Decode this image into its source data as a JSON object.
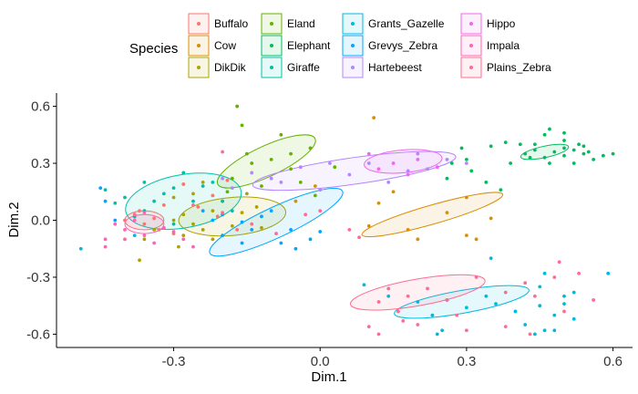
{
  "chart_data": {
    "type": "scatter",
    "xlabel": "Dim.1",
    "ylabel": "Dim.2",
    "xlim": [
      -0.54,
      0.64
    ],
    "ylim": [
      -0.67,
      0.67
    ],
    "xticks": [
      -0.3,
      0.0,
      0.3,
      0.6
    ],
    "xtick_labels": [
      "-0.3",
      "0.0",
      "0.3",
      "0.6"
    ],
    "yticks": [
      -0.6,
      -0.3,
      0.0,
      0.3,
      0.6
    ],
    "ytick_labels": [
      "-0.6",
      "-0.3",
      "0.0",
      "0.3",
      "0.6"
    ],
    "grid": false,
    "legend": {
      "title": "Species",
      "position": "top",
      "columns": 4
    },
    "series": [
      {
        "name": "Buffalo",
        "color": "#F8766D",
        "ellipse": {
          "cx": -0.36,
          "cy": 0.0,
          "rx": 0.04,
          "ry": 0.05,
          "angle": 0
        },
        "points": [
          [
            -0.38,
            0.02
          ],
          [
            -0.36,
            -0.02
          ],
          [
            -0.34,
            0.01
          ],
          [
            -0.4,
            0.0
          ],
          [
            -0.37,
            0.05
          ],
          [
            -0.33,
            -0.05
          ],
          [
            -0.3,
            -0.07
          ],
          [
            -0.25,
            0.07
          ],
          [
            -0.28,
            0.19
          ],
          [
            -0.21,
            0.02
          ],
          [
            -0.19,
            0.21
          ],
          [
            -0.17,
            -0.05
          ],
          [
            -0.22,
            0.13
          ],
          [
            -0.32,
            0.08
          ]
        ]
      },
      {
        "name": "Cow",
        "color": "#DB8E00",
        "ellipse": {
          "cx": 0.23,
          "cy": 0.03,
          "rx": 0.15,
          "ry": 0.05,
          "angle": -16
        },
        "points": [
          [
            0.11,
            0.54
          ],
          [
            0.2,
            -0.1
          ],
          [
            0.12,
            0.09
          ],
          [
            0.26,
            0.04
          ],
          [
            0.3,
            0.12
          ],
          [
            0.3,
            -0.08
          ],
          [
            0.32,
            -0.1
          ],
          [
            0.15,
            0.15
          ],
          [
            0.18,
            -0.05
          ],
          [
            0.35,
            0.01
          ],
          [
            0.1,
            -0.03
          ],
          [
            -0.05,
            0.1
          ],
          [
            -0.01,
            0.18
          ]
        ]
      },
      {
        "name": "DikDik",
        "color": "#AEA200",
        "ellipse": {
          "cx": -0.18,
          "cy": 0.02,
          "rx": 0.11,
          "ry": 0.1,
          "angle": -5
        },
        "points": [
          [
            -0.3,
            0.0
          ],
          [
            -0.28,
            0.03
          ],
          [
            -0.26,
            -0.02
          ],
          [
            -0.22,
            0.05
          ],
          [
            -0.2,
            0.1
          ],
          [
            -0.15,
            0.14
          ],
          [
            -0.13,
            0.07
          ],
          [
            -0.24,
            -0.05
          ],
          [
            -0.18,
            -0.03
          ],
          [
            -0.12,
            -0.04
          ],
          [
            -0.3,
            0.12
          ],
          [
            -0.22,
            -0.1
          ],
          [
            -0.28,
            -0.08
          ],
          [
            -0.16,
            0.04
          ],
          [
            -0.34,
            -0.05
          ],
          [
            -0.37,
            -0.21
          ],
          [
            -0.29,
            -0.14
          ],
          [
            -0.36,
            -0.1
          ],
          [
            -0.24,
            0.2
          ],
          [
            -0.26,
            0.14
          ]
        ]
      },
      {
        "name": "Eland",
        "color": "#64B200",
        "ellipse": {
          "cx": -0.11,
          "cy": 0.31,
          "rx": 0.11,
          "ry": 0.08,
          "angle": -25
        },
        "points": [
          [
            -0.17,
            0.6
          ],
          [
            -0.16,
            0.5
          ],
          [
            -0.1,
            0.32
          ],
          [
            -0.08,
            0.45
          ],
          [
            -0.14,
            0.3
          ],
          [
            -0.06,
            0.27
          ],
          [
            -0.12,
            0.18
          ],
          [
            -0.02,
            0.38
          ],
          [
            -0.18,
            0.22
          ],
          [
            -0.04,
            0.2
          ],
          [
            -0.15,
            0.35
          ],
          [
            -0.19,
            0.15
          ],
          [
            0.03,
            0.28
          ],
          [
            -0.01,
            0.13
          ],
          [
            -0.06,
            0.35
          ]
        ]
      },
      {
        "name": "Elephant",
        "color": "#00BD5C",
        "ellipse": {
          "cx": 0.46,
          "cy": 0.36,
          "rx": 0.05,
          "ry": 0.03,
          "angle": -12
        },
        "points": [
          [
            0.42,
            0.35
          ],
          [
            0.44,
            0.37
          ],
          [
            0.46,
            0.33
          ],
          [
            0.48,
            0.36
          ],
          [
            0.5,
            0.38
          ],
          [
            0.52,
            0.37
          ],
          [
            0.54,
            0.35
          ],
          [
            0.5,
            0.34
          ],
          [
            0.46,
            0.45
          ],
          [
            0.47,
            0.48
          ],
          [
            0.5,
            0.46
          ],
          [
            0.53,
            0.4
          ],
          [
            0.55,
            0.36
          ],
          [
            0.58,
            0.34
          ],
          [
            0.6,
            0.35
          ],
          [
            0.44,
            0.4
          ],
          [
            0.41,
            0.4
          ],
          [
            0.38,
            0.41
          ],
          [
            0.35,
            0.39
          ],
          [
            0.52,
            0.3
          ],
          [
            0.56,
            0.32
          ],
          [
            0.47,
            0.3
          ],
          [
            0.43,
            0.33
          ],
          [
            0.27,
            0.3
          ],
          [
            0.31,
            0.26
          ],
          [
            0.3,
            0.32
          ],
          [
            0.26,
            0.22
          ],
          [
            0.37,
            0.16
          ],
          [
            0.34,
            0.2
          ],
          [
            0.29,
            0.38
          ],
          [
            0.39,
            0.3
          ],
          [
            0.5,
            0.42
          ],
          [
            0.54,
            0.39
          ]
        ]
      },
      {
        "name": "Giraffe",
        "color": "#00C1A7",
        "ellipse": {
          "cx": -0.28,
          "cy": 0.1,
          "rx": 0.12,
          "ry": 0.14,
          "angle": -10
        },
        "points": [
          [
            -0.4,
            0.12
          ],
          [
            -0.36,
            0.2
          ],
          [
            -0.32,
            0.14
          ],
          [
            -0.28,
            0.25
          ],
          [
            -0.24,
            0.18
          ],
          [
            -0.2,
            0.1
          ],
          [
            -0.18,
            0.05
          ],
          [
            -0.36,
            0.05
          ],
          [
            -0.3,
            -0.02
          ],
          [
            -0.26,
            0.1
          ],
          [
            -0.22,
            0.2
          ],
          [
            -0.38,
            0.02
          ],
          [
            -0.34,
            0.1
          ],
          [
            -0.42,
            0.09
          ],
          [
            -0.3,
            0.17
          ],
          [
            -0.44,
            0.16
          ]
        ]
      },
      {
        "name": "Grants_Gazelle",
        "color": "#00BADE",
        "ellipse": {
          "cx": 0.29,
          "cy": -0.43,
          "rx": 0.14,
          "ry": 0.06,
          "angle": -10
        },
        "points": [
          [
            0.14,
            -0.4
          ],
          [
            0.2,
            -0.43
          ],
          [
            0.26,
            -0.42
          ],
          [
            0.3,
            -0.46
          ],
          [
            0.36,
            -0.44
          ],
          [
            0.4,
            -0.48
          ],
          [
            0.34,
            -0.4
          ],
          [
            0.45,
            -0.45
          ],
          [
            0.48,
            -0.5
          ],
          [
            0.5,
            -0.44
          ],
          [
            0.52,
            -0.52
          ],
          [
            0.42,
            -0.55
          ],
          [
            0.44,
            -0.6
          ],
          [
            0.46,
            -0.58
          ],
          [
            0.48,
            -0.58
          ],
          [
            0.23,
            -0.5
          ],
          [
            0.25,
            -0.58
          ],
          [
            0.24,
            -0.6
          ],
          [
            0.09,
            -0.34
          ],
          [
            0.45,
            -0.35
          ],
          [
            0.46,
            -0.28
          ],
          [
            0.52,
            -0.38
          ],
          [
            0.59,
            -0.28
          ],
          [
            0.5,
            -0.4
          ],
          [
            0.35,
            -0.2
          ],
          [
            -0.49,
            -0.15
          ],
          [
            -0.38,
            -0.08
          ]
        ]
      },
      {
        "name": "Grevys_Zebra",
        "color": "#00A6FF",
        "ellipse": {
          "cx": -0.09,
          "cy": -0.01,
          "rx": 0.15,
          "ry": 0.08,
          "angle": -25
        },
        "points": [
          [
            -0.2,
            0.03
          ],
          [
            -0.16,
            -0.01
          ],
          [
            -0.12,
            0.02
          ],
          [
            -0.06,
            -0.05
          ],
          [
            -0.02,
            -0.1
          ],
          [
            0.0,
            -0.06
          ],
          [
            -0.08,
            -0.12
          ],
          [
            -0.14,
            -0.05
          ],
          [
            -0.2,
            -0.08
          ],
          [
            -0.16,
            -0.12
          ],
          [
            -0.1,
            0.05
          ],
          [
            -0.22,
            0.0
          ],
          [
            -0.24,
            0.05
          ],
          [
            -0.05,
            -0.15
          ],
          [
            -0.45,
            0.17
          ],
          [
            -0.44,
            0.1
          ],
          [
            -0.42,
            0.0
          ]
        ]
      },
      {
        "name": "Hartebeest",
        "color": "#B385FF",
        "ellipse": {
          "cx": 0.07,
          "cy": 0.26,
          "rx": 0.21,
          "ry": 0.07,
          "angle": -8
        },
        "points": [
          [
            -0.2,
            0.22
          ],
          [
            -0.14,
            0.25
          ],
          [
            -0.08,
            0.2
          ],
          [
            -0.04,
            0.28
          ],
          [
            0.02,
            0.3
          ],
          [
            0.06,
            0.24
          ],
          [
            0.1,
            0.3
          ],
          [
            0.14,
            0.2
          ],
          [
            0.18,
            0.26
          ],
          [
            0.22,
            0.27
          ],
          [
            0.26,
            0.32
          ],
          [
            0.3,
            0.3
          ],
          [
            0.2,
            0.35
          ],
          [
            -0.1,
            0.22
          ],
          [
            -0.18,
            0.17
          ],
          [
            0.0,
            0.16
          ]
        ]
      },
      {
        "name": "Hippo",
        "color": "#EF67EB",
        "ellipse": {
          "cx": 0.17,
          "cy": 0.31,
          "rx": 0.08,
          "ry": 0.06,
          "angle": -5
        },
        "points": [
          [
            0.1,
            0.35
          ],
          [
            0.15,
            0.3
          ],
          [
            0.2,
            0.32
          ],
          [
            0.24,
            0.28
          ],
          [
            0.18,
            0.24
          ],
          [
            0.12,
            0.27
          ]
        ]
      },
      {
        "name": "Impala",
        "color": "#FF63B6",
        "ellipse": {
          "cx": -0.36,
          "cy": -0.02,
          "rx": 0.04,
          "ry": 0.05,
          "angle": 0
        },
        "points": [
          [
            -0.4,
            -0.05
          ],
          [
            -0.36,
            -0.08
          ],
          [
            -0.32,
            -0.04
          ],
          [
            -0.38,
            0.0
          ],
          [
            -0.44,
            -0.1
          ],
          [
            -0.34,
            -0.12
          ],
          [
            -0.28,
            -0.1
          ],
          [
            -0.42,
            -0.02
          ],
          [
            -0.3,
            -0.06
          ],
          [
            -0.36,
            0.04
          ],
          [
            -0.26,
            -0.14
          ],
          [
            -0.44,
            -0.14
          ]
        ]
      },
      {
        "name": "Plains_Zebra",
        "color": "#FF6C91",
        "ellipse": {
          "cx": 0.2,
          "cy": -0.38,
          "rx": 0.14,
          "ry": 0.07,
          "angle": -10
        },
        "points": [
          [
            0.14,
            -0.36
          ],
          [
            0.18,
            -0.4
          ],
          [
            0.22,
            -0.36
          ],
          [
            0.26,
            -0.42
          ],
          [
            0.12,
            -0.43
          ],
          [
            0.16,
            -0.48
          ],
          [
            0.2,
            -0.55
          ],
          [
            0.17,
            -0.53
          ],
          [
            0.12,
            -0.6
          ],
          [
            0.1,
            -0.56
          ],
          [
            0.28,
            -0.5
          ],
          [
            0.32,
            -0.3
          ],
          [
            0.38,
            -0.38
          ],
          [
            0.42,
            -0.33
          ],
          [
            0.48,
            -0.3
          ],
          [
            0.49,
            -0.22
          ],
          [
            0.53,
            -0.28
          ],
          [
            0.56,
            -0.42
          ],
          [
            0.44,
            -0.4
          ],
          [
            0.5,
            -0.48
          ],
          [
            0.3,
            -0.58
          ],
          [
            0.38,
            -0.56
          ],
          [
            0.43,
            -0.6
          ],
          [
            -0.2,
            0.04
          ],
          [
            -0.14,
            -0.02
          ],
          [
            -0.09,
            -0.07
          ],
          [
            -0.38,
            0.03
          ],
          [
            -0.4,
            -0.1
          ],
          [
            -0.2,
            0.36
          ],
          [
            -0.26,
            0.08
          ],
          [
            0.06,
            -0.05
          ],
          [
            0.08,
            -0.09
          ],
          [
            0.0,
            0.05
          ],
          [
            -0.03,
            0.03
          ]
        ]
      }
    ]
  }
}
